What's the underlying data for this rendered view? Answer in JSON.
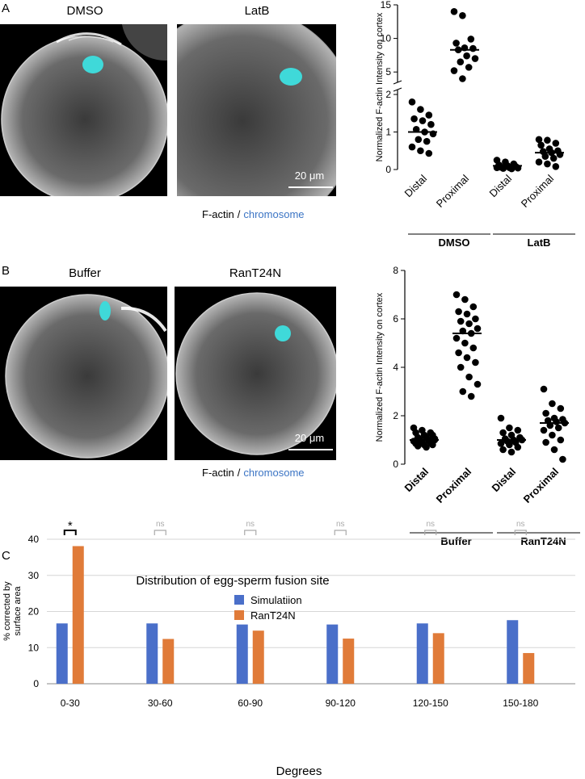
{
  "panel_a": {
    "label": "A",
    "images": [
      "DMSO",
      "LatB"
    ],
    "scale_bar": "20 μm",
    "caption": {
      "stain": "F-actin",
      "separator": "/",
      "dna": "chromosome"
    }
  },
  "panel_b": {
    "label": "B",
    "images": [
      "Buffer",
      "RanT24N"
    ],
    "scale_bar": "20 μm",
    "caption": {
      "stain": "F-actin",
      "separator": "/",
      "dna": "chromosome"
    }
  },
  "panel_c": {
    "label": "C"
  },
  "chart_data": [
    {
      "type": "dot",
      "ylabel": "Normalized F-actin Intensity on cortex",
      "categories": [
        "Distal",
        "Proximal",
        "Distal",
        "Proximal"
      ],
      "groups": [
        "DMSO",
        "LatB"
      ],
      "values": [
        [
          1.8,
          1.6,
          1.45,
          1.35,
          1.3,
          1.2,
          1.07,
          1.0,
          0.95,
          0.8,
          0.75,
          0.6,
          0.5,
          0.43
        ],
        [
          14.0,
          13.4,
          9.9,
          9.3,
          8.6,
          8.5,
          8.3,
          7.4,
          7.0,
          6.5,
          5.7,
          5.2,
          4.0
        ],
        [
          0.25,
          0.2,
          0.15,
          0.12,
          0.1,
          0.08,
          0.06,
          0.05,
          0.04,
          0.03,
          0.02,
          0.05
        ],
        [
          0.8,
          0.78,
          0.7,
          0.65,
          0.55,
          0.5,
          0.48,
          0.45,
          0.4,
          0.35,
          0.3,
          0.2,
          0.15,
          0.08
        ]
      ],
      "means": [
        1.0,
        8.3,
        0.1,
        0.45
      ],
      "color": "#000000",
      "ylim": [
        0,
        15
      ],
      "axis_break": [
        2,
        3.7
      ],
      "yticks": [
        0,
        1,
        2,
        5,
        10,
        15
      ]
    },
    {
      "type": "dot",
      "ylabel": "Normalized F-actin Intensity on cortex",
      "categories": [
        "Distal",
        "Proximal",
        "Distal",
        "Proximal"
      ],
      "groups": [
        "Buffer",
        "RanT24N"
      ],
      "values": [
        [
          1.5,
          1.4,
          1.3,
          1.3,
          1.2,
          1.2,
          1.1,
          1.1,
          1.05,
          1.0,
          1.0,
          0.95,
          0.9,
          0.9,
          0.85,
          0.8,
          0.8,
          0.75,
          0.7,
          1.0
        ],
        [
          7.0,
          6.8,
          6.5,
          6.3,
          6.2,
          6.0,
          5.9,
          5.8,
          5.6,
          5.5,
          5.4,
          5.2,
          5.0,
          4.8,
          4.6,
          4.4,
          4.2,
          4.0,
          3.6,
          3.3,
          3.0,
          2.8
        ],
        [
          1.9,
          1.5,
          1.4,
          1.3,
          1.2,
          1.1,
          1.05,
          1.0,
          1.0,
          0.95,
          0.9,
          0.85,
          0.8,
          0.7,
          0.6,
          0.5
        ],
        [
          3.1,
          2.5,
          2.3,
          2.1,
          1.9,
          1.85,
          1.8,
          1.75,
          1.7,
          1.6,
          1.5,
          1.4,
          1.2,
          1.0,
          0.9,
          0.6,
          0.2
        ]
      ],
      "means": [
        1.0,
        5.4,
        1.0,
        1.7
      ],
      "color": "#000000",
      "ylim": [
        0,
        8
      ],
      "yticks": [
        0,
        2,
        4,
        6,
        8
      ]
    },
    {
      "type": "bar",
      "title": "Distribution of egg-sperm fusion site",
      "xlabel": "Degrees",
      "ylabel": [
        "% corrected by",
        "surface area"
      ],
      "categories": [
        "0-30",
        "30-60",
        "60-90",
        "90-120",
        "120-150",
        "150-180"
      ],
      "series": [
        {
          "name": "Simulatiion",
          "color": "#4a6fc9",
          "values": [
            16.7,
            16.7,
            16.4,
            16.4,
            16.7,
            17.6
          ]
        },
        {
          "name": "RanT24N",
          "color": "#e07b39",
          "values": [
            38.1,
            12.4,
            14.7,
            12.5,
            14.0,
            8.5
          ]
        }
      ],
      "annotations": [
        {
          "label": "*",
          "color": "#000000"
        },
        {
          "label": "ns",
          "color": "#aaaaaa"
        },
        {
          "label": "ns",
          "color": "#aaaaaa"
        },
        {
          "label": "ns",
          "color": "#aaaaaa"
        },
        {
          "label": "ns",
          "color": "#aaaaaa"
        },
        {
          "label": "ns",
          "color": "#aaaaaa"
        }
      ],
      "ylim": [
        0,
        40
      ],
      "yticks": [
        0,
        10,
        20,
        30,
        40
      ],
      "grid": true,
      "legend": "top-right"
    }
  ]
}
